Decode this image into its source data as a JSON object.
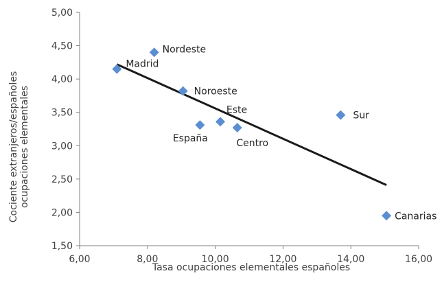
{
  "chart_data": {
    "type": "scatter",
    "title": "",
    "xlabel": "Tasa ocupaciones elementales españoles",
    "ylabel": [
      "Cociente extranjeros/españoles",
      "ocupaciones elementales"
    ],
    "xlim": [
      6,
      16
    ],
    "ylim": [
      1.5,
      5
    ],
    "xticks": [
      6,
      8,
      10,
      12,
      14,
      16
    ],
    "xtick_labels": [
      "6,00",
      "8,00",
      "10,00",
      "12,00",
      "14,00",
      "16,00"
    ],
    "yticks": [
      1.5,
      2,
      2.5,
      3,
      3.5,
      4,
      4.5,
      5
    ],
    "ytick_labels": [
      "1,50",
      "2,00",
      "2,50",
      "3,00",
      "3,50",
      "4,00",
      "4,50",
      "5,00"
    ],
    "grid": false,
    "legend": false,
    "marker": "diamond",
    "marker_color": "#5B8ED1",
    "trendline_color": "#1a1a1a",
    "points": [
      {
        "label": "Madrid",
        "x": 7.1,
        "y": 4.15
      },
      {
        "label": "Nordeste",
        "x": 8.2,
        "y": 4.4
      },
      {
        "label": "Noroeste",
        "x": 9.05,
        "y": 3.82
      },
      {
        "label": "España",
        "x": 9.55,
        "y": 3.31
      },
      {
        "label": "Este",
        "x": 10.15,
        "y": 3.36
      },
      {
        "label": "Centro",
        "x": 10.65,
        "y": 3.27
      },
      {
        "label": "Sur",
        "x": 13.7,
        "y": 3.46
      },
      {
        "label": "Canarias",
        "x": 15.05,
        "y": 1.95
      }
    ],
    "trendline": {
      "x": [
        7.1,
        15.05
      ],
      "y": [
        4.22,
        2.41
      ]
    }
  }
}
